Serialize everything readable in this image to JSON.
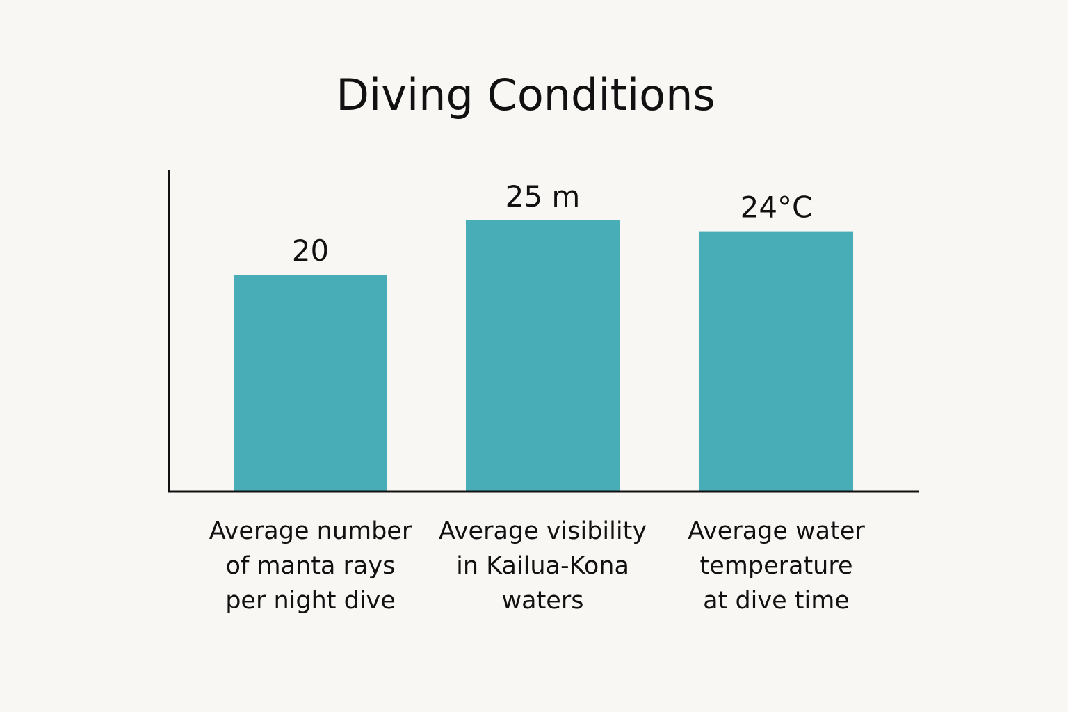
{
  "chart_data": {
    "type": "bar",
    "title": "Diving Conditions",
    "xlabel": "",
    "ylabel": "",
    "categories": [
      [
        "Average number",
        "of manta rays",
        "per night dive"
      ],
      [
        "Average visibility",
        "in Kailua-Kona",
        "waters"
      ],
      [
        "Average water",
        "temperature",
        "at dive time"
      ]
    ],
    "values": [
      20,
      25,
      24
    ],
    "value_labels": [
      "20",
      "25 m",
      "24°C"
    ],
    "bar_color": "#48adb6",
    "grid": false,
    "legend": "none"
  }
}
